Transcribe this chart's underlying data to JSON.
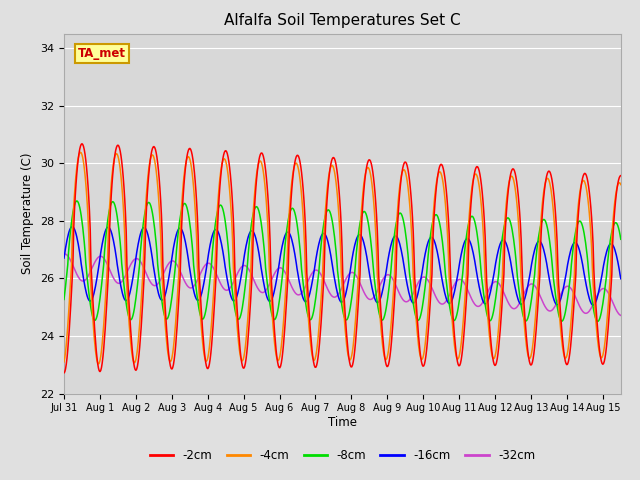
{
  "title": "Alfalfa Soil Temperatures Set C",
  "xlabel": "Time",
  "ylabel": "Soil Temperature (C)",
  "ylim": [
    22,
    34.5
  ],
  "yticks": [
    22,
    24,
    26,
    28,
    30,
    32,
    34
  ],
  "fig_bg": "#e0e0e0",
  "plot_bg": "#d8d8d8",
  "series": [
    {
      "label": "-2cm",
      "color": "#ff0000"
    },
    {
      "label": "-4cm",
      "color": "#ff8800"
    },
    {
      "label": "-8cm",
      "color": "#00dd00"
    },
    {
      "label": "-16cm",
      "color": "#0000ff"
    },
    {
      "label": "-32cm",
      "color": "#cc44cc"
    }
  ],
  "n_days": 15.5,
  "annotation_text": "TA_met",
  "annotation_color": "#cc0000",
  "annotation_bg": "#ffff99",
  "annotation_border": "#cc9900",
  "grid_color": "#ffffff",
  "figsize": [
    6.4,
    4.8
  ],
  "dpi": 100
}
